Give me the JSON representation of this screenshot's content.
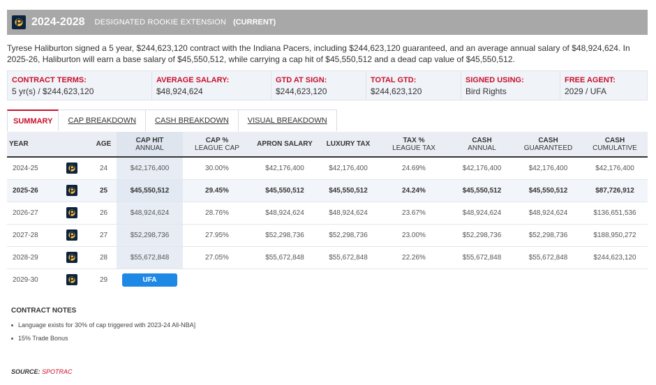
{
  "header": {
    "years": "2024-2028",
    "contract_type": "DESIGNATED ROOKIE EXTENSION",
    "status": "(CURRENT)",
    "logo_icon": "pacers-logo-icon",
    "bar_color": "#a8a8a8"
  },
  "summary": "Tyrese Haliburton signed a 5 year, $244,623,120 contract with the Indiana Pacers, including $244,623,120 guaranteed, and an average annual salary of $48,924,624. In 2025-26, Haliburton will earn a base salary of $45,550,512, while carrying a cap hit of $45,550,512 and a dead cap value of $45,550,512.",
  "terms": [
    {
      "label": "CONTRACT TERMS:",
      "value": "5 yr(s) / $244,623,120"
    },
    {
      "label": "AVERAGE SALARY:",
      "value": "$48,924,624"
    },
    {
      "label": "GTD AT SIGN:",
      "value": "$244,623,120"
    },
    {
      "label": "TOTAL GTD:",
      "value": "$244,623,120"
    },
    {
      "label": "SIGNED USING:",
      "value": "Bird Rights"
    },
    {
      "label": "FREE AGENT:",
      "value": "2029 / UFA"
    }
  ],
  "tabs": [
    {
      "label": "SUMMARY",
      "active": true
    },
    {
      "label": "CAP BREAKDOWN",
      "active": false
    },
    {
      "label": "CASH BREAKDOWN",
      "active": false
    },
    {
      "label": "VISUAL BREAKDOWN",
      "active": false
    }
  ],
  "table": {
    "headers": {
      "year": "YEAR",
      "age": "AGE",
      "cap_hit": [
        "CAP HIT",
        "ANNUAL"
      ],
      "cap_pct": [
        "CAP %",
        "LEAGUE CAP"
      ],
      "apron": "APRON SALARY",
      "luxury": "LUXURY TAX",
      "tax_pct": [
        "TAX %",
        "LEAGUE TAX"
      ],
      "cash_annual": [
        "CASH",
        "ANNUAL"
      ],
      "cash_gtd": [
        "CASH",
        "GUARANTEED"
      ],
      "cash_cum": [
        "CASH",
        "CUMULATIVE"
      ]
    },
    "rows": [
      {
        "year": "2024-25",
        "age": "24",
        "cap_hit": "$42,176,400",
        "cap_pct": "30.00%",
        "apron": "$42,176,400",
        "luxury": "$42,176,400",
        "tax_pct": "24.69%",
        "cash_annual": "$42,176,400",
        "cash_gtd": "$42,176,400",
        "cash_cum": "$42,176,400"
      },
      {
        "year": "2025-26",
        "age": "25",
        "cap_hit": "$45,550,512",
        "cap_pct": "29.45%",
        "apron": "$45,550,512",
        "luxury": "$45,550,512",
        "tax_pct": "24.24%",
        "cash_annual": "$45,550,512",
        "cash_gtd": "$45,550,512",
        "cash_cum": "$87,726,912"
      },
      {
        "year": "2026-27",
        "age": "26",
        "cap_hit": "$48,924,624",
        "cap_pct": "28.76%",
        "apron": "$48,924,624",
        "luxury": "$48,924,624",
        "tax_pct": "23.67%",
        "cash_annual": "$48,924,624",
        "cash_gtd": "$48,924,624",
        "cash_cum": "$136,651,536"
      },
      {
        "year": "2027-28",
        "age": "27",
        "cap_hit": "$52,298,736",
        "cap_pct": "27.95%",
        "apron": "$52,298,736",
        "luxury": "$52,298,736",
        "tax_pct": "23.00%",
        "cash_annual": "$52,298,736",
        "cash_gtd": "$52,298,736",
        "cash_cum": "$188,950,272"
      },
      {
        "year": "2028-29",
        "age": "28",
        "cap_hit": "$55,672,848",
        "cap_pct": "27.05%",
        "apron": "$55,672,848",
        "luxury": "$55,672,848",
        "tax_pct": "22.26%",
        "cash_annual": "$55,672,848",
        "cash_gtd": "$55,672,848",
        "cash_cum": "$244,623,120"
      }
    ],
    "ufa_row": {
      "year": "2029-30",
      "age": "29",
      "badge": "UFA"
    }
  },
  "notes": {
    "title": "CONTRACT NOTES",
    "items": [
      "Language exists for 30% of cap triggered with 2023-24 All-NBA]",
      "15% Trade Bonus"
    ]
  },
  "source": {
    "label": "SOURCE:",
    "link": "SPOTRAC"
  },
  "colors": {
    "accent_red": "#c8102e",
    "badge_blue": "#1e88e5",
    "team_navy": "#0c2340",
    "team_gold": "#fdbb30"
  }
}
